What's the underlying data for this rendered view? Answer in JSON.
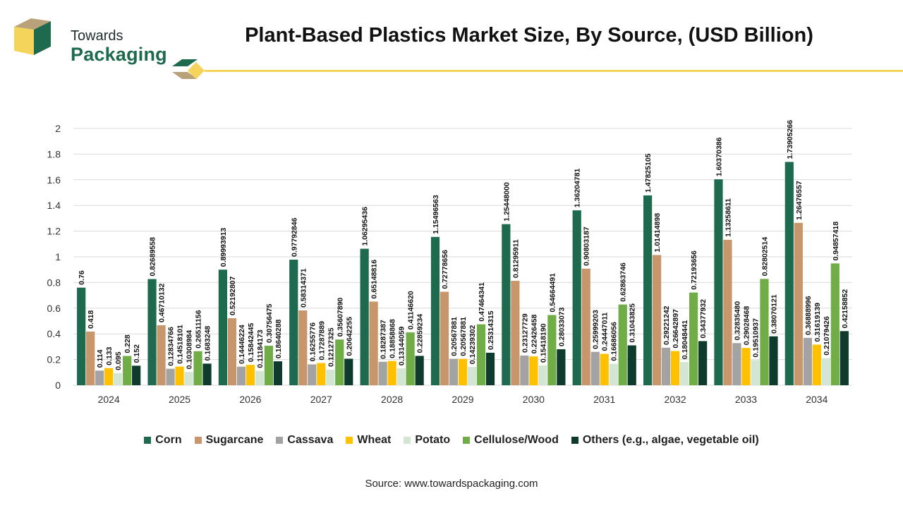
{
  "brand": {
    "name_top": "Towards",
    "name_bottom": "Packaging"
  },
  "title": "Plant-Based Plastics Market Size, By Source, (USD Billion)",
  "source": "Source: www.towardspackaging.com",
  "colors": {
    "corn": "#1e6a4e",
    "sugarcane": "#c8966b",
    "cassava": "#a3a3a3",
    "wheat": "#ffc000",
    "potato": "#d3e5d3",
    "cellulose": "#70ad47",
    "others": "#0e3b2e",
    "accent_yellow": "#f5d45c"
  },
  "chart_data": {
    "type": "bar",
    "categories": [
      "2024",
      "2025",
      "2026",
      "2027",
      "2028",
      "2029",
      "2030",
      "2031",
      "2032",
      "2033",
      "2034"
    ],
    "ylim": [
      0,
      2
    ],
    "yticks": [
      "0",
      "0.2",
      "0.4",
      "0.6",
      "0.8",
      "1",
      "1.2",
      "1.4",
      "1.6",
      "1.8",
      "2"
    ],
    "grid": true,
    "legend_position": "bottom",
    "series": [
      {
        "name": "Corn",
        "color": "#1e6a4e",
        "values": [
          0.76,
          0.82689558,
          0.89993913,
          0.97792846,
          1.06295436,
          1.15496563,
          1.25448,
          1.36204781,
          1.47825105,
          1.60370386,
          1.73905266
        ],
        "labels": [
          "0.76",
          "0.82689558",
          "0.89993913",
          "0.97792846",
          "1.06295436",
          "1.15496563",
          "1.25448000",
          "1.36204781",
          "1.47825105",
          "1.60370386",
          "1.73905266"
        ]
      },
      {
        "name": "Sugarcane",
        "color": "#c8966b",
        "values": [
          0.418,
          0.46710132,
          0.52192807,
          0.58314371,
          0.65148816,
          0.72778656,
          0.81295911,
          0.90803187,
          1.01414898,
          1.13258611,
          1.26476557
        ],
        "labels": [
          "0.418",
          "0.46710132",
          "0.52192807",
          "0.58314371",
          "0.65148816",
          "0.72778656",
          "0.81295911",
          "0.90803187",
          "1.01414898",
          "1.13258611",
          "1.26476557"
        ]
      },
      {
        "name": "Cassava",
        "color": "#a3a3a3",
        "values": [
          0.114,
          0.12834766,
          0.14446224,
          0.16255776,
          0.18287387,
          0.20567881,
          0.23127729,
          0.25999203,
          0.29221242,
          0.3283548,
          0.36888996
        ],
        "labels": [
          "0.114",
          "0.12834766",
          "0.14446224",
          "0.16255776",
          "0.18287387",
          "0.20567881",
          "0.23127729",
          "0.25999203",
          "0.29221242",
          "0.32835480",
          "0.36888996"
        ]
      },
      {
        "name": "Wheat",
        "color": "#ffc000",
        "values": [
          0.133,
          0.14518101,
          0.15842445,
          0.17287889,
          0.18858868,
          0.20567881,
          0.22426458,
          0.24447011,
          0.26642897,
          0.29028468,
          0.31619139
        ],
        "labels": [
          "0.133",
          "0.14518101",
          "0.15842445",
          "0.17287889",
          "0.18858868",
          "0.20567881",
          "0.22426458",
          "0.24447011",
          "0.26642897",
          "0.29028468",
          "0.31619139"
        ]
      },
      {
        "name": "Potato",
        "color": "#d3e5d3",
        "values": [
          0.095,
          0.10308984,
          0.11184173,
          0.12127325,
          0.13144059,
          0.14239302,
          0.1541819,
          0.16686056,
          0.18048441,
          0.19510937,
          0.21079426
        ],
        "labels": [
          "0.095",
          "0.10308984",
          "0.11184173",
          "0.12127325",
          "0.13144059",
          "0.14239302",
          "0.15418190",
          "0.16686056",
          "0.18048441",
          "0.19510937",
          "0.21079426"
        ]
      },
      {
        "name": "Cellulose/Wood",
        "color": "#70ad47",
        "values": [
          0.228,
          0.26511156,
          0.30756475,
          0.3560789,
          0.4114662,
          0.47464341,
          0.54664491,
          0.62863746,
          0.72193656,
          0.82802514,
          0.94857418
        ],
        "labels": [
          "0.228",
          "0.26511156",
          "0.30756475",
          "0.35607890",
          "0.41146620",
          "0.47464341",
          "0.54664491",
          "0.62863746",
          "0.72193656",
          "0.82802514",
          "0.94857418"
        ]
      },
      {
        "name": "Others (e.g., algae, vegetable oil)",
        "color": "#0e3b2e",
        "values": [
          0.152,
          0.1683248,
          0.18640288,
          0.20642255,
          0.22859234,
          0.25314315,
          0.28033073,
          0.31043825,
          0.34377932,
          0.38070121,
          0.42158852
        ],
        "labels": [
          "0.152",
          "0.1683248",
          "0.18640288",
          "0.20642255",
          "0.22859234",
          "0.25314315",
          "0.28033073",
          "0.31043825",
          "0.34377932",
          "0.38070121",
          "0.42158852"
        ]
      }
    ]
  }
}
